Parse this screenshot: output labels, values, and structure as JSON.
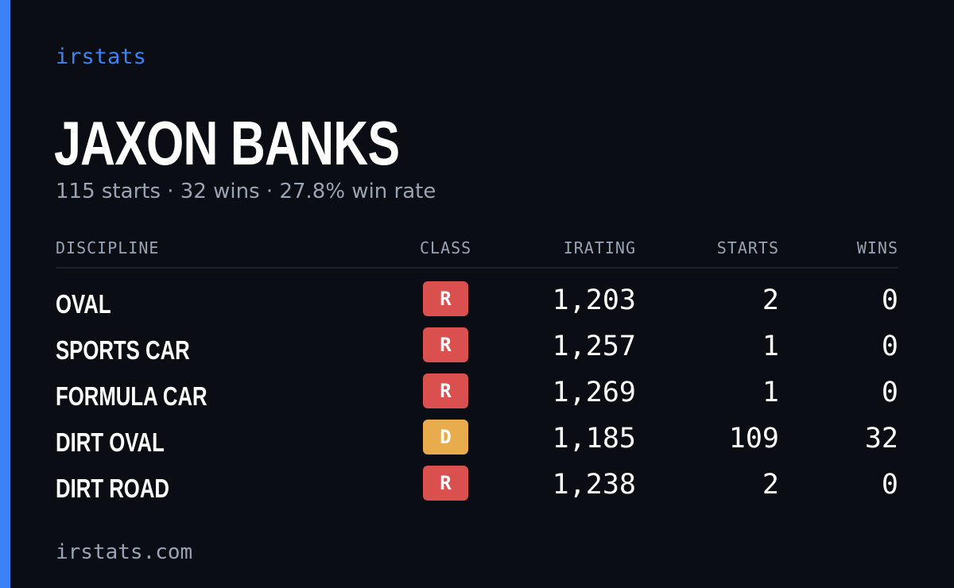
{
  "brand": "irstats",
  "driver": {
    "name": "JAXON BANKS",
    "summary": "115 starts · 32 wins · 27.8% win rate"
  },
  "table": {
    "headers": {
      "discipline": "DISCIPLINE",
      "class": "CLASS",
      "irating": "IRATING",
      "starts": "STARTS",
      "wins": "WINS"
    },
    "rows": [
      {
        "discipline": "OVAL",
        "class": "R",
        "irating": "1,203",
        "starts": "2",
        "wins": "0"
      },
      {
        "discipline": "SPORTS CAR",
        "class": "R",
        "irating": "1,257",
        "starts": "1",
        "wins": "0"
      },
      {
        "discipline": "FORMULA CAR",
        "class": "R",
        "irating": "1,269",
        "starts": "1",
        "wins": "0"
      },
      {
        "discipline": "DIRT OVAL",
        "class": "D",
        "irating": "1,185",
        "starts": "109",
        "wins": "32"
      },
      {
        "discipline": "DIRT ROAD",
        "class": "R",
        "irating": "1,238",
        "starts": "2",
        "wins": "0"
      }
    ]
  },
  "footer": "irstats.com",
  "colors": {
    "background": "#0a0d14",
    "accent": "#3b82f6",
    "class_r": "#d9504f",
    "class_d": "#e8ac4d",
    "muted_text": "#9aa3b3"
  }
}
